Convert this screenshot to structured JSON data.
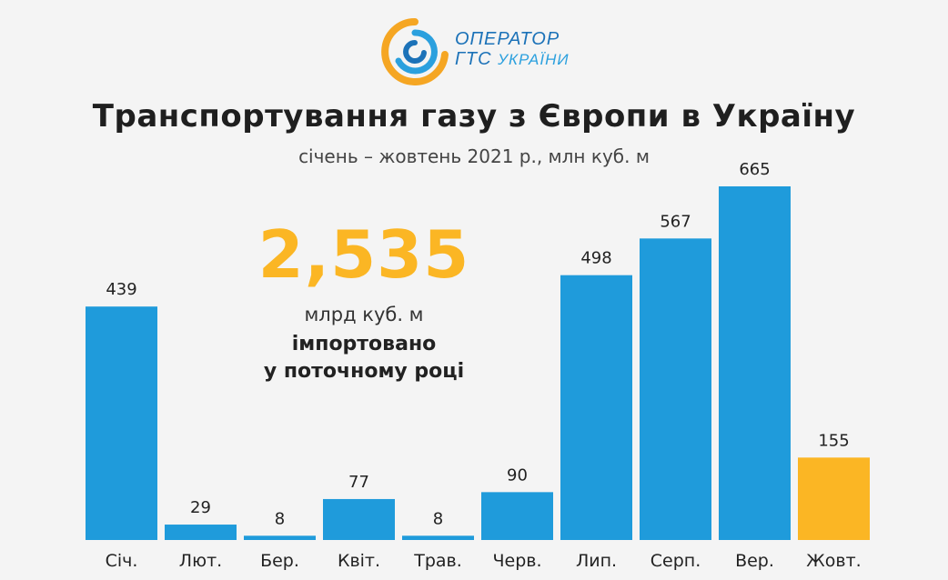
{
  "logo": {
    "line1": "ОПЕРАТОР",
    "line2_part1": "ГТС ",
    "line2_part2": "УКРАЇНИ",
    "colors": {
      "orange": "#f5a623",
      "blue": "#2ba0de",
      "dark_blue": "#1c72b8"
    }
  },
  "highlight": {
    "value": "2,535",
    "unit": "млрд куб. м",
    "desc_line1": "імпортовано",
    "desc_line2": "у поточному році"
  },
  "colors": {
    "bar": "#1f9bdb",
    "highlight_bar": "#fbb624",
    "highlight_text": "#fbb624"
  },
  "chart_data": {
    "type": "bar",
    "title": "Транспортування газу з Європи в Україну",
    "subtitle": "січень – жовтень 2021 р., млн куб. м",
    "categories": [
      "Січ.",
      "Лют.",
      "Бер.",
      "Квіт.",
      "Трав.",
      "Черв.",
      "Лип.",
      "Серп.",
      "Вер.",
      "Жовт."
    ],
    "values": [
      439,
      29,
      8,
      77,
      8,
      90,
      498,
      567,
      665,
      155
    ],
    "highlighted_category": "Жовт.",
    "ylim": [
      0,
      665
    ],
    "grid": false,
    "legend": "none"
  }
}
